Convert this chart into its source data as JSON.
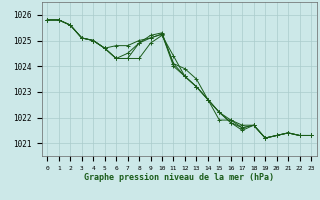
{
  "title": "Graphe pression niveau de la mer (hPa)",
  "background_color": "#cce8e8",
  "grid_color": "#aacccc",
  "line_color": "#1a5c1a",
  "x_labels": [
    "0",
    "1",
    "2",
    "3",
    "4",
    "5",
    "6",
    "7",
    "8",
    "9",
    "10",
    "11",
    "12",
    "13",
    "14",
    "15",
    "16",
    "17",
    "18",
    "19",
    "20",
    "21",
    "22",
    "23"
  ],
  "ylim": [
    1020.5,
    1026.5
  ],
  "yticks": [
    1021,
    1022,
    1023,
    1024,
    1025,
    1026
  ],
  "series": [
    [
      1025.8,
      1025.8,
      1025.6,
      1025.1,
      1025.0,
      1024.7,
      1024.3,
      1024.3,
      1024.9,
      1025.1,
      1025.25,
      1024.0,
      1023.6,
      1023.2,
      1022.7,
      1022.2,
      1021.8,
      1021.5,
      1021.7,
      1021.2,
      1021.3,
      1021.4,
      1021.3,
      1021.3
    ],
    [
      1025.8,
      1025.8,
      1025.6,
      1025.1,
      1025.0,
      1024.7,
      1024.8,
      1024.8,
      1025.0,
      1025.1,
      1025.25,
      1024.1,
      1023.6,
      1023.2,
      1022.7,
      1021.9,
      1021.9,
      1021.7,
      1021.7,
      1021.2,
      1021.3,
      1021.4,
      1021.3,
      1021.3
    ],
    [
      1025.8,
      1025.8,
      1025.6,
      1025.1,
      1025.0,
      1024.7,
      1024.3,
      1024.3,
      1024.3,
      1024.9,
      1025.2,
      1024.4,
      1023.6,
      1023.2,
      1022.7,
      1022.2,
      1021.8,
      1021.6,
      1021.7,
      1021.2,
      1021.3,
      1021.4,
      1021.3,
      1021.3
    ],
    [
      1025.8,
      1025.8,
      1025.6,
      1025.1,
      1025.0,
      1024.7,
      1024.3,
      1024.5,
      1024.9,
      1025.2,
      1025.3,
      1024.1,
      1023.9,
      1023.5,
      1022.7,
      1022.2,
      1021.9,
      1021.6,
      1021.7,
      1021.2,
      1021.3,
      1021.4,
      1021.3,
      1021.3
    ]
  ]
}
